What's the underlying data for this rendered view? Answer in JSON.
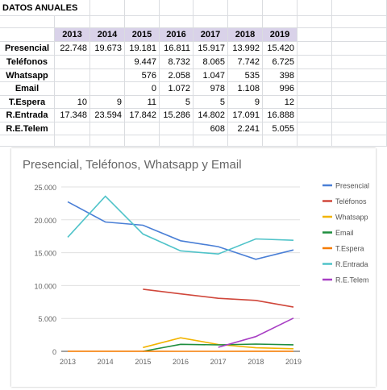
{
  "sheet": {
    "title": "DATOS ANUALES",
    "years": [
      "2013",
      "2014",
      "2015",
      "2016",
      "2017",
      "2018",
      "2019"
    ],
    "rows": [
      {
        "label": "Presencial",
        "values": [
          "22.748",
          "19.673",
          "19.181",
          "16.811",
          "15.917",
          "13.992",
          "15.420"
        ]
      },
      {
        "label": "Teléfonos",
        "values": [
          "",
          "",
          "9.447",
          "8.732",
          "8.065",
          "7.742",
          "6.725"
        ]
      },
      {
        "label": "Whatsapp",
        "values": [
          "",
          "",
          "576",
          "2.058",
          "1.047",
          "535",
          "398"
        ]
      },
      {
        "label": "Email",
        "values": [
          "",
          "",
          "0",
          "1.072",
          "978",
          "1.108",
          "996"
        ]
      },
      {
        "label": "T.Espera",
        "values": [
          "10",
          "9",
          "11",
          "5",
          "5",
          "9",
          "12"
        ]
      },
      {
        "label": "R.Entrada",
        "values": [
          "17.348",
          "23.594",
          "17.842",
          "15.286",
          "14.802",
          "17.091",
          "16.888"
        ]
      },
      {
        "label": "R.E.Telem",
        "values": [
          "",
          "",
          "",
          "",
          "608",
          "2.241",
          "5.055"
        ]
      }
    ]
  },
  "chart_data": {
    "type": "line",
    "title": "Presencial, Teléfonos, Whatsapp y Email",
    "x": [
      "2013",
      "2014",
      "2015",
      "2016",
      "2017",
      "2018",
      "2019"
    ],
    "ylim": [
      0,
      25000
    ],
    "yticks": [
      "0",
      "5.000",
      "10.000",
      "15.000",
      "20.000",
      "25.000"
    ],
    "ytick_values": [
      0,
      5000,
      10000,
      15000,
      20000,
      25000
    ],
    "grid": true,
    "legend_position": "right",
    "series": [
      {
        "name": "Presencial",
        "color": "#4a7fd6",
        "values": [
          22748,
          19673,
          19181,
          16811,
          15917,
          13992,
          15420
        ]
      },
      {
        "name": "Teléfonos",
        "color": "#d0473b",
        "values": [
          null,
          null,
          9447,
          8732,
          8065,
          7742,
          6725
        ]
      },
      {
        "name": "Whatsapp",
        "color": "#f2b400",
        "values": [
          null,
          null,
          576,
          2058,
          1047,
          535,
          398
        ]
      },
      {
        "name": "Email",
        "color": "#1e8e3e",
        "values": [
          null,
          null,
          0,
          1072,
          978,
          1108,
          996
        ]
      },
      {
        "name": "T.Espera",
        "color": "#f57c00",
        "values": [
          10,
          9,
          11,
          5,
          5,
          9,
          12
        ]
      },
      {
        "name": "R.Entrada",
        "color": "#4fc3c9",
        "values": [
          17348,
          23594,
          17842,
          15286,
          14802,
          17091,
          16888
        ]
      },
      {
        "name": "R.E.Telem",
        "color": "#a83fc4",
        "values": [
          null,
          null,
          null,
          null,
          608,
          2241,
          5055
        ]
      }
    ]
  }
}
